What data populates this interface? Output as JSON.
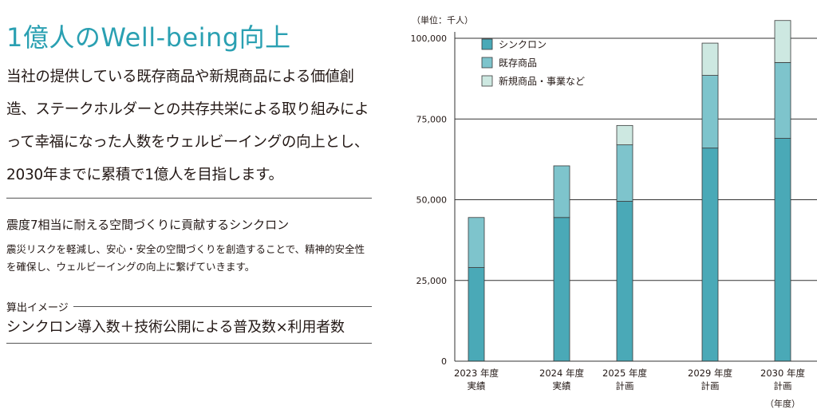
{
  "left": {
    "headline": "1億人のWell-being向上",
    "intro": "当社の提供している既存商品や新規商品による価値創造、ステークホルダーとの共存共栄による取り組みによって幸福になった人数をウェルビーイングの向上とし、2030年までに累積で1億人を目指します。",
    "sub_heading": "震度7相当に耐える空間づくりに貢献するシンクロン",
    "sub_body": "震災リスクを軽減し、安心・安全の空間づくりを創造することで、精神的安全性を確保し、ウェルビーイングの向上に繋げていきます。",
    "calc_label": "算出イメージ",
    "formula": "シンクロン導入数＋技術公開による普及数×利用者数"
  },
  "colors": {
    "headline": "#2aa0b2",
    "syncron": "#4aa9b7",
    "existing": "#7ec4cc",
    "new": "#cde8e1"
  },
  "chart_data": {
    "type": "bar",
    "stacked": true,
    "unit_label": "（単位：千人）",
    "categories": [
      [
        "2023 年度",
        "実績"
      ],
      [
        "2024 年度",
        "実績"
      ],
      [
        "2025 年度",
        "計画"
      ],
      [
        "2029 年度",
        "計画"
      ],
      [
        "2030 年度",
        "計画"
      ]
    ],
    "series": [
      {
        "name": "シンクロン",
        "color": "#4aa9b7",
        "values": [
          29000,
          44500,
          49500,
          66000,
          69000
        ]
      },
      {
        "name": "既存商品",
        "color": "#7ec4cc",
        "values": [
          15500,
          16000,
          17500,
          22500,
          23500
        ]
      },
      {
        "name": "新規商品・事業など",
        "color": "#cde8e1",
        "values": [
          0,
          0,
          6000,
          10000,
          13000
        ]
      }
    ],
    "ylim": [
      0,
      100000
    ],
    "yticks": [
      0,
      25000,
      50000,
      75000,
      100000
    ],
    "ytick_labels": [
      "0",
      "25,000",
      "50,000",
      "75,000",
      "100,000"
    ],
    "xlabel": "（年度）",
    "grid": true,
    "legend_position": "top-left"
  }
}
